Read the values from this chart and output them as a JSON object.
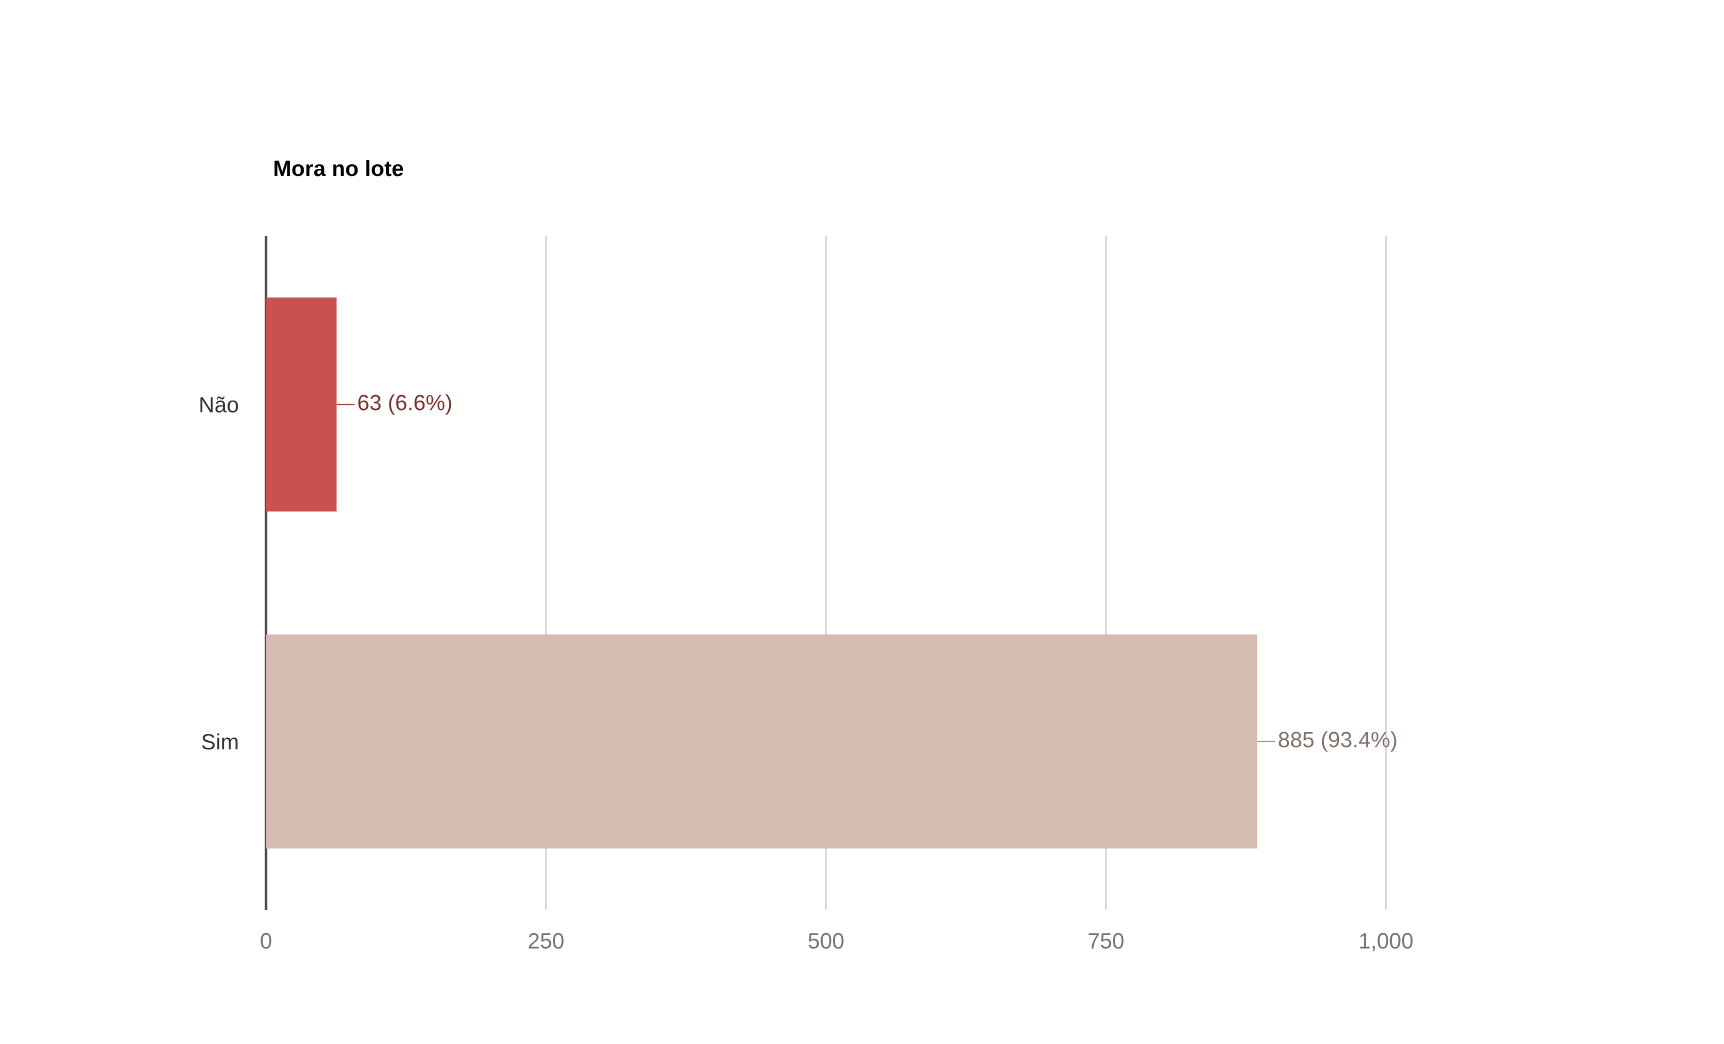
{
  "chart_data": {
    "type": "bar",
    "orientation": "horizontal",
    "title": "Mora no lote",
    "categories": [
      "Não",
      "Sim"
    ],
    "values": [
      63,
      885
    ],
    "colors": [
      "#c9514f",
      "#d5bbb0"
    ],
    "value_labels": [
      "63 (6.6%)",
      "885 (93.4%)"
    ],
    "xlim": [
      0,
      1000
    ],
    "xticks": [
      0,
      250,
      500,
      750,
      {
        "value": 1000,
        "label": "1,000"
      }
    ],
    "grid": "x"
  }
}
